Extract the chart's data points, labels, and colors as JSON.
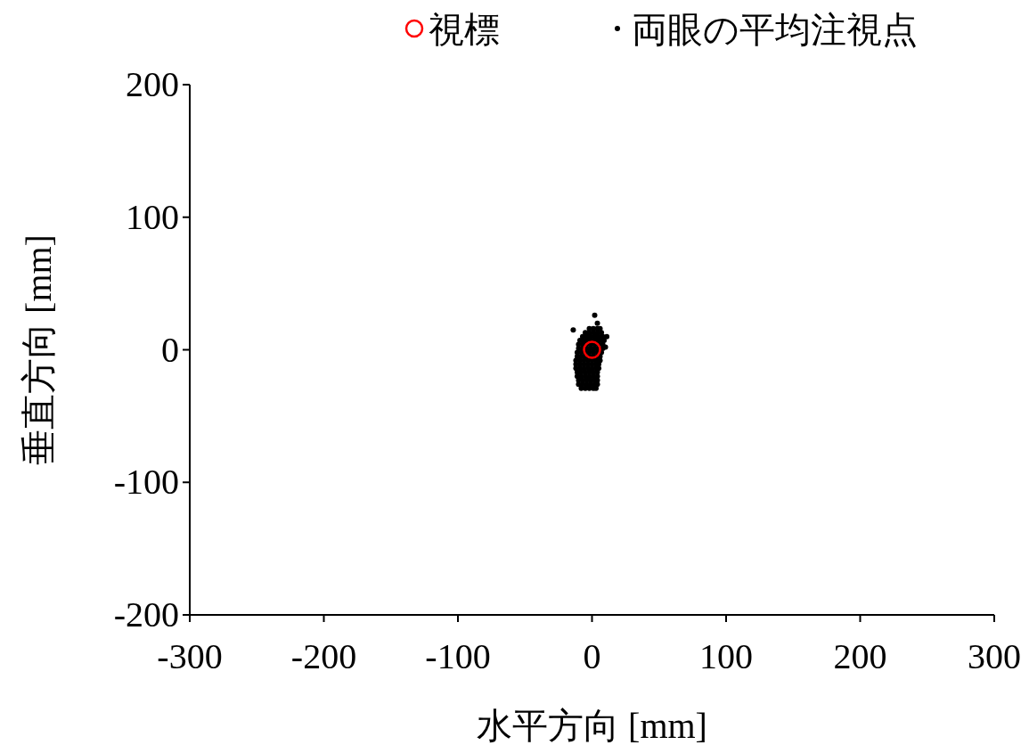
{
  "chart_data": {
    "type": "scatter",
    "xlabel": "水平方向 [mm]",
    "ylabel": "垂直方向 [mm]",
    "xlim": [
      -300,
      300
    ],
    "xticks": [
      -300,
      -200,
      -100,
      0,
      100,
      200,
      300
    ],
    "ylim": [
      -200,
      200
    ],
    "yticks": [
      -200,
      -100,
      0,
      100,
      200
    ],
    "grid": false,
    "legend": "top right",
    "series": [
      {
        "name": "視標",
        "color": "#ff0000",
        "marker": "circle",
        "x": [
          0
        ],
        "values": [
          0
        ]
      },
      {
        "name": "両眼の平均注視点",
        "color": "#000000",
        "marker": "circle",
        "x": [
          -2,
          1,
          4,
          6,
          -5,
          -2,
          1,
          4,
          7,
          -7,
          -4,
          -1,
          2,
          5,
          8,
          -9,
          -6,
          -3,
          0,
          3,
          6,
          9,
          -10,
          -7,
          -4,
          -1,
          2,
          5,
          8,
          -10,
          -7,
          -4,
          -1,
          2,
          5,
          8,
          -11,
          -8,
          -5,
          -2,
          1,
          4,
          7,
          -11,
          -8,
          -5,
          -2,
          1,
          4,
          6,
          -12,
          -9,
          -6,
          -3,
          0,
          3,
          6,
          -12,
          -9,
          -6,
          -3,
          0,
          3,
          5,
          -12,
          -9,
          -6,
          -3,
          0,
          3,
          5,
          -11,
          -8,
          -5,
          -2,
          1,
          4,
          -11,
          -8,
          -5,
          -2,
          1,
          4,
          -10,
          -7,
          -4,
          -1,
          2,
          4,
          -10,
          -7,
          -4,
          -1,
          2,
          4,
          -8,
          -5,
          -2,
          1,
          3,
          2,
          4,
          -14,
          11,
          10
        ],
        "values": [
          16,
          16,
          16,
          16,
          13,
          13,
          13,
          13,
          13,
          10,
          10,
          10,
          10,
          10,
          10,
          7,
          7,
          7,
          7,
          7,
          7,
          7,
          4,
          4,
          4,
          4,
          4,
          4,
          4,
          1,
          1,
          1,
          1,
          1,
          1,
          1,
          -2,
          -2,
          -2,
          -2,
          -2,
          -2,
          -2,
          -5,
          -5,
          -5,
          -5,
          -5,
          -5,
          -5,
          -8,
          -8,
          -8,
          -8,
          -8,
          -8,
          -8,
          -11,
          -11,
          -11,
          -11,
          -11,
          -11,
          -11,
          -14,
          -14,
          -14,
          -14,
          -14,
          -14,
          -14,
          -17,
          -17,
          -17,
          -17,
          -17,
          -17,
          -20,
          -20,
          -20,
          -20,
          -20,
          -20,
          -23,
          -23,
          -23,
          -23,
          -23,
          -23,
          -26,
          -26,
          -26,
          -26,
          -26,
          -26,
          -29,
          -29,
          -29,
          -29,
          -29,
          26,
          20,
          15,
          10,
          2
        ]
      }
    ]
  }
}
